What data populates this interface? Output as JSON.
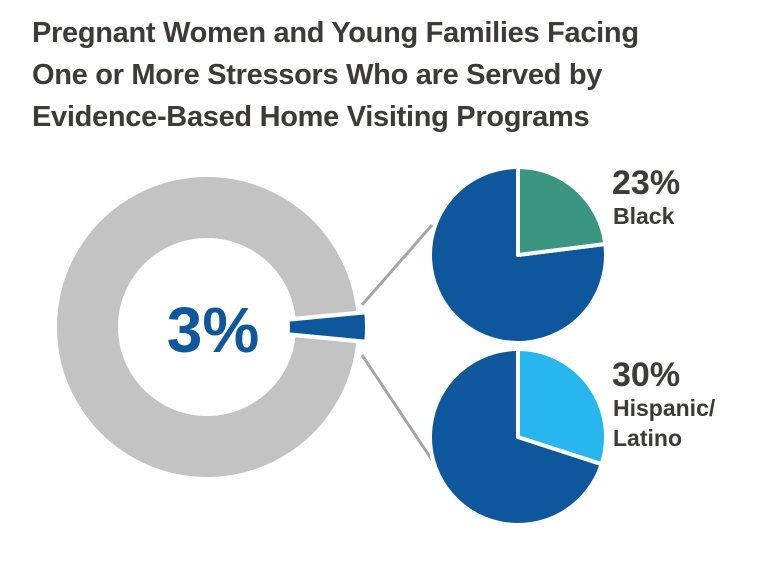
{
  "title_lines": [
    "Pregnant Women and Young Families Facing",
    "One or More Stressors Who are Served by",
    "Evidence-Based Home Visiting Programs"
  ],
  "colors": {
    "title": "#3d3a38",
    "donut_rest": "#c3c3c3",
    "served": "#0e579c",
    "black": "#3a9680",
    "hispanic": "#27b6ee",
    "connector": "#a6a6a6"
  },
  "chart_data": [
    {
      "type": "pie",
      "variant": "donut",
      "center_label": "3%",
      "slices": [
        {
          "value": 3,
          "color": "#0e579c",
          "exploded": true
        },
        {
          "value": 97,
          "color": "#c3c3c3"
        }
      ]
    },
    {
      "type": "pie",
      "value_label": "23%",
      "category_lines": [
        "Black"
      ],
      "slices": [
        {
          "value": 23,
          "color": "#3a9680"
        },
        {
          "value": 77,
          "color": "#0e579c"
        }
      ]
    },
    {
      "type": "pie",
      "value_label": "30%",
      "category_lines": [
        "Hispanic/",
        "Latino"
      ],
      "slices": [
        {
          "value": 30,
          "color": "#27b6ee"
        },
        {
          "value": 70,
          "color": "#0e579c"
        }
      ]
    }
  ]
}
